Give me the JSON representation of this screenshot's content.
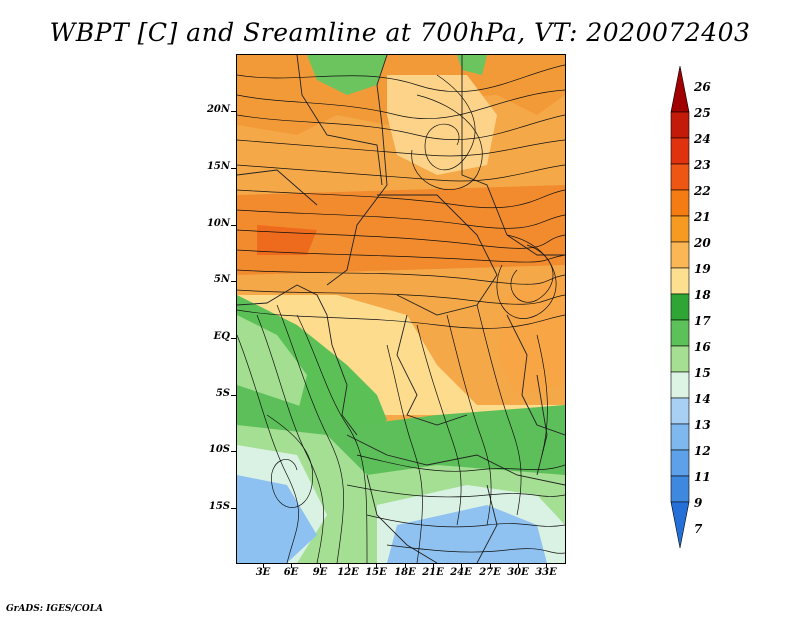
{
  "title": "WBPT [C] and Sreamline at 700hPa, VT: 2020072403",
  "footer": "GrADS: IGES/COLA",
  "map": {
    "lat_labels": [
      "20N",
      "15N",
      "10N",
      "5N",
      "EQ",
      "5S",
      "10S",
      "15S"
    ],
    "lon_labels": [
      "3E",
      "6E",
      "9E",
      "12E",
      "15E",
      "18E",
      "21E",
      "24E",
      "27E",
      "30E",
      "33E"
    ]
  },
  "colorbar": {
    "labels": [
      "26",
      "25",
      "24",
      "23",
      "22",
      "21",
      "20",
      "19",
      "18",
      "17",
      "16",
      "15",
      "14",
      "13",
      "12",
      "11",
      "9",
      "7"
    ],
    "colors": [
      "#a10000",
      "#c41a0a",
      "#e0320f",
      "#ee5614",
      "#f47c12",
      "#f79a22",
      "#fbb755",
      "#fde08f",
      "#2fa535",
      "#5cc158",
      "#a5e092",
      "#ddf4e4",
      "#a8d0f4",
      "#7fb7ef",
      "#5da1ea",
      "#3f88e0",
      "#2470d8"
    ]
  }
}
